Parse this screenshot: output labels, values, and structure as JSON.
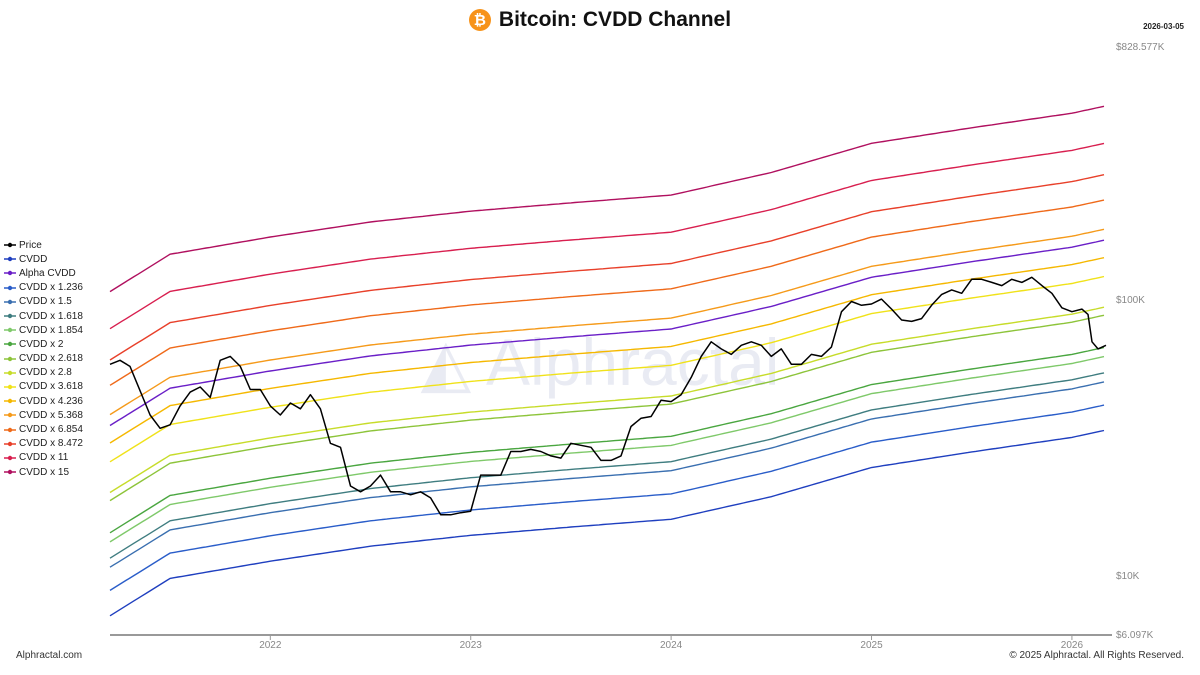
{
  "header": {
    "title": "Bitcoin: CVDD Channel",
    "logo_glyph": "₿",
    "date": "2026-03-05"
  },
  "footer": {
    "left": "Alphractal.com",
    "right": "© 2025 Alphractal. All Rights Reserved."
  },
  "watermark": "Alphractal",
  "chart_data": {
    "type": "line",
    "title": "Bitcoin: CVDD Channel",
    "yscale": "log",
    "ylim": [
      6097,
      828577
    ],
    "xlim": [
      2021.2,
      2026.2
    ],
    "x_ticks": [
      "2022",
      "2023",
      "2024",
      "2025",
      "2026"
    ],
    "y_tick_labels": [
      "$828.577K",
      "$100K",
      "$10K",
      "$6.097K"
    ],
    "cvdd_base": {
      "x": [
        2021.2,
        2021.5,
        2022.0,
        2022.5,
        2023.0,
        2023.5,
        2024.0,
        2024.5,
        2025.0,
        2025.5,
        2026.0,
        2026.17
      ],
      "y": [
        7100,
        9700,
        11200,
        12700,
        13900,
        14900,
        15900,
        19200,
        24500,
        27900,
        31500,
        33500
      ]
    },
    "series": [
      {
        "name": "Price",
        "color": "#000000"
      },
      {
        "name": "CVDD",
        "multiplier": 1,
        "color": "#1f3fbf"
      },
      {
        "name": "Alpha CVDD",
        "multiplier": 4.9,
        "color": "#6a1fc7"
      },
      {
        "name": "CVDD x 1.236",
        "multiplier": 1.236,
        "color": "#2a5dc9"
      },
      {
        "name": "CVDD x 1.5",
        "multiplier": 1.5,
        "color": "#3a6fb0"
      },
      {
        "name": "CVDD x 1.618",
        "multiplier": 1.618,
        "color": "#3f7d80"
      },
      {
        "name": "CVDD x 1.854",
        "multiplier": 1.854,
        "color": "#7fc96a"
      },
      {
        "name": "CVDD x 2",
        "multiplier": 2,
        "color": "#4aa640"
      },
      {
        "name": "CVDD x 2.618",
        "multiplier": 2.618,
        "color": "#8dc43a"
      },
      {
        "name": "CVDD x 2.8",
        "multiplier": 2.8,
        "color": "#c7dc2a"
      },
      {
        "name": "CVDD x 3.618",
        "multiplier": 3.618,
        "color": "#f0e21a"
      },
      {
        "name": "CVDD x 4.236",
        "multiplier": 4.236,
        "color": "#f5b800"
      },
      {
        "name": "CVDD x 5.368",
        "multiplier": 5.368,
        "color": "#f59a1a"
      },
      {
        "name": "CVDD x 6.854",
        "multiplier": 6.854,
        "color": "#ef6a1a"
      },
      {
        "name": "CVDD x 8.472",
        "multiplier": 8.472,
        "color": "#e8402a"
      },
      {
        "name": "CVDD x 11",
        "multiplier": 11,
        "color": "#d81f4f"
      },
      {
        "name": "CVDD x 15",
        "multiplier": 15,
        "color": "#b0105f"
      }
    ],
    "price": {
      "x": [
        2021.2,
        2021.25,
        2021.3,
        2021.4,
        2021.45,
        2021.5,
        2021.55,
        2021.6,
        2021.65,
        2021.7,
        2021.75,
        2021.8,
        2021.85,
        2021.9,
        2021.95,
        2022.0,
        2022.05,
        2022.1,
        2022.15,
        2022.2,
        2022.25,
        2022.3,
        2022.35,
        2022.4,
        2022.45,
        2022.5,
        2022.55,
        2022.6,
        2022.65,
        2022.7,
        2022.75,
        2022.8,
        2022.85,
        2022.9,
        2022.95,
        2023.0,
        2023.05,
        2023.1,
        2023.15,
        2023.2,
        2023.25,
        2023.3,
        2023.35,
        2023.4,
        2023.45,
        2023.5,
        2023.55,
        2023.6,
        2023.65,
        2023.7,
        2023.75,
        2023.8,
        2023.85,
        2023.9,
        2023.95,
        2024.0,
        2024.05,
        2024.1,
        2024.15,
        2024.2,
        2024.25,
        2024.3,
        2024.35,
        2024.4,
        2024.45,
        2024.5,
        2024.55,
        2024.6,
        2024.65,
        2024.7,
        2024.75,
        2024.8,
        2024.85,
        2024.9,
        2024.95,
        2025.0,
        2025.05,
        2025.1,
        2025.15,
        2025.2,
        2025.25,
        2025.3,
        2025.35,
        2025.4,
        2025.45,
        2025.5,
        2025.55,
        2025.6,
        2025.65,
        2025.7,
        2025.75,
        2025.8,
        2025.85,
        2025.9,
        2025.95,
        2026.0,
        2026.05,
        2026.08,
        2026.1,
        2026.13,
        2026.17
      ],
      "y": [
        58000,
        60000,
        57000,
        38000,
        34000,
        35000,
        41000,
        46000,
        48000,
        44000,
        60000,
        62000,
        57000,
        47000,
        47000,
        41000,
        38000,
        42000,
        40000,
        45000,
        40000,
        30000,
        29000,
        21000,
        20000,
        21000,
        23000,
        20000,
        20000,
        19500,
        20000,
        19000,
        16500,
        16500,
        16800,
        17000,
        23000,
        23000,
        23000,
        28000,
        28000,
        28500,
        28000,
        27000,
        26500,
        30000,
        29500,
        29000,
        26000,
        26000,
        27000,
        34500,
        37000,
        37500,
        43000,
        42500,
        45000,
        52000,
        62000,
        70000,
        66000,
        63000,
        68000,
        70000,
        68000,
        62000,
        66000,
        58000,
        58000,
        63000,
        62000,
        67000,
        90000,
        98000,
        95000,
        96000,
        100000,
        92000,
        84000,
        83000,
        85000,
        95000,
        104000,
        108000,
        105000,
        118000,
        118000,
        115000,
        112000,
        118000,
        115000,
        120000,
        112000,
        105000,
        93000,
        90000,
        92000,
        88000,
        70000,
        66000,
        68000
      ]
    }
  }
}
